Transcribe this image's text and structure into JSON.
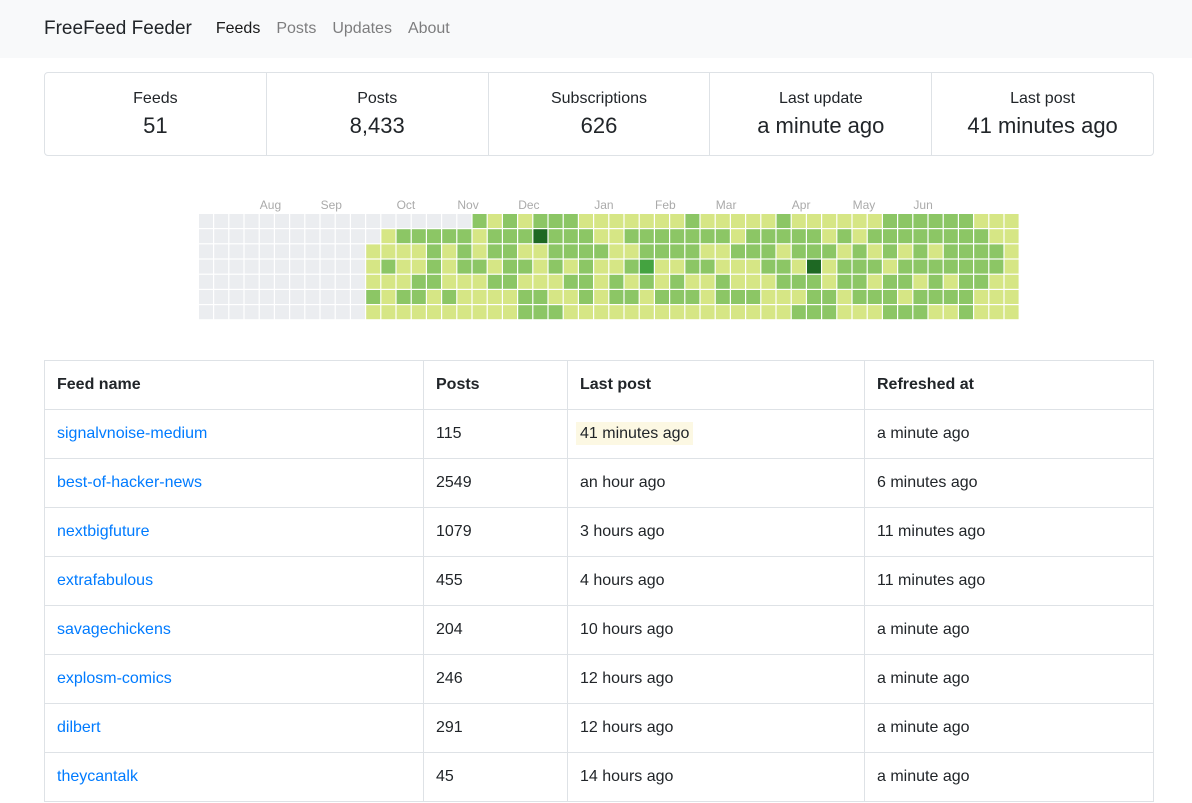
{
  "navbar": {
    "brand": "FreeFeed Feeder",
    "links": [
      {
        "label": "Feeds",
        "active": true
      },
      {
        "label": "Posts",
        "active": false
      },
      {
        "label": "Updates",
        "active": false
      },
      {
        "label": "About",
        "active": false
      }
    ]
  },
  "stats": [
    {
      "label": "Feeds",
      "value": "51"
    },
    {
      "label": "Posts",
      "value": "8,433"
    },
    {
      "label": "Subscriptions",
      "value": "626"
    },
    {
      "label": "Last update",
      "value": "a minute ago"
    },
    {
      "label": "Last post",
      "value": "41 minutes ago"
    }
  ],
  "heatmap": {
    "month_labels": [
      "Aug",
      "Sep",
      "Oct",
      "Nov",
      "Dec",
      "Jan",
      "Feb",
      "Mar",
      "Apr",
      "May",
      "Jun"
    ],
    "colors": [
      "#ebedf0",
      "#d6e685",
      "#8cc665",
      "#44a340",
      "#1e6823"
    ],
    "weeks": [
      [
        0,
        0,
        0,
        0,
        0,
        0,
        0
      ],
      [
        0,
        0,
        0,
        0,
        0,
        0,
        0
      ],
      [
        0,
        0,
        0,
        0,
        0,
        0,
        0
      ],
      [
        0,
        0,
        0,
        0,
        0,
        0,
        0
      ],
      [
        0,
        0,
        0,
        0,
        0,
        0,
        0
      ],
      [
        0,
        0,
        0,
        0,
        0,
        0,
        0
      ],
      [
        0,
        0,
        0,
        0,
        0,
        0,
        0
      ],
      [
        0,
        0,
        0,
        0,
        0,
        0,
        0
      ],
      [
        0,
        0,
        0,
        0,
        0,
        0,
        0
      ],
      [
        0,
        0,
        0,
        0,
        0,
        0,
        0
      ],
      [
        0,
        0,
        0,
        0,
        0,
        0,
        0
      ],
      [
        0,
        0,
        1,
        1,
        1,
        2,
        1
      ],
      [
        0,
        1,
        1,
        2,
        1,
        1,
        1
      ],
      [
        0,
        2,
        1,
        1,
        1,
        2,
        1
      ],
      [
        0,
        2,
        1,
        1,
        2,
        2,
        1
      ],
      [
        0,
        2,
        2,
        2,
        2,
        1,
        1
      ],
      [
        0,
        2,
        1,
        1,
        1,
        2,
        1
      ],
      [
        0,
        2,
        2,
        2,
        1,
        1,
        1
      ],
      [
        2,
        1,
        1,
        2,
        1,
        1,
        1
      ],
      [
        1,
        2,
        2,
        1,
        2,
        1,
        1
      ],
      [
        2,
        2,
        2,
        2,
        2,
        1,
        1
      ],
      [
        1,
        2,
        1,
        2,
        1,
        2,
        2
      ],
      [
        2,
        4,
        1,
        1,
        1,
        2,
        2
      ],
      [
        2,
        2,
        2,
        2,
        1,
        1,
        2
      ],
      [
        2,
        2,
        2,
        1,
        2,
        1,
        1
      ],
      [
        1,
        2,
        2,
        2,
        2,
        2,
        1
      ],
      [
        1,
        1,
        2,
        1,
        1,
        1,
        1
      ],
      [
        1,
        1,
        1,
        1,
        2,
        2,
        1
      ],
      [
        1,
        2,
        1,
        2,
        1,
        2,
        1
      ],
      [
        1,
        2,
        2,
        3,
        2,
        1,
        1
      ],
      [
        1,
        2,
        2,
        1,
        1,
        2,
        1
      ],
      [
        1,
        2,
        2,
        1,
        2,
        2,
        1
      ],
      [
        2,
        2,
        2,
        2,
        1,
        2,
        1
      ],
      [
        1,
        2,
        1,
        2,
        1,
        1,
        1
      ],
      [
        1,
        2,
        1,
        1,
        2,
        2,
        1
      ],
      [
        1,
        1,
        2,
        1,
        1,
        2,
        1
      ],
      [
        1,
        2,
        2,
        1,
        1,
        2,
        1
      ],
      [
        1,
        2,
        2,
        2,
        1,
        1,
        1
      ],
      [
        2,
        2,
        1,
        2,
        2,
        1,
        1
      ],
      [
        1,
        2,
        2,
        1,
        2,
        1,
        2
      ],
      [
        1,
        2,
        2,
        4,
        2,
        2,
        2
      ],
      [
        1,
        1,
        2,
        1,
        1,
        2,
        2
      ],
      [
        1,
        2,
        1,
        2,
        2,
        1,
        1
      ],
      [
        1,
        1,
        2,
        2,
        2,
        2,
        1
      ],
      [
        1,
        2,
        1,
        2,
        1,
        2,
        1
      ],
      [
        2,
        2,
        2,
        1,
        2,
        2,
        2
      ],
      [
        2,
        2,
        1,
        2,
        2,
        1,
        2
      ],
      [
        2,
        2,
        2,
        2,
        1,
        2,
        2
      ],
      [
        2,
        2,
        1,
        2,
        2,
        2,
        1
      ],
      [
        2,
        2,
        2,
        2,
        1,
        2,
        1
      ],
      [
        2,
        2,
        2,
        2,
        2,
        2,
        2
      ],
      [
        1,
        2,
        2,
        2,
        2,
        1,
        1
      ],
      [
        1,
        1,
        2,
        2,
        1,
        1,
        1
      ],
      [
        1,
        1,
        1,
        1,
        1,
        1,
        1
      ]
    ]
  },
  "table": {
    "headers": [
      "Feed name",
      "Posts",
      "Last post",
      "Refreshed at"
    ],
    "rows": [
      {
        "name": "signalvnoise-medium",
        "posts": "115",
        "last_post": "41 minutes ago",
        "refreshed": "a minute ago",
        "highlight": true
      },
      {
        "name": "best-of-hacker-news",
        "posts": "2549",
        "last_post": "an hour ago",
        "refreshed": "6 minutes ago",
        "highlight": false
      },
      {
        "name": "nextbigfuture",
        "posts": "1079",
        "last_post": "3 hours ago",
        "refreshed": "11 minutes ago",
        "highlight": false
      },
      {
        "name": "extrafabulous",
        "posts": "455",
        "last_post": "4 hours ago",
        "refreshed": "11 minutes ago",
        "highlight": false
      },
      {
        "name": "savagechickens",
        "posts": "204",
        "last_post": "10 hours ago",
        "refreshed": "a minute ago",
        "highlight": false
      },
      {
        "name": "explosm-comics",
        "posts": "246",
        "last_post": "12 hours ago",
        "refreshed": "a minute ago",
        "highlight": false
      },
      {
        "name": "dilbert",
        "posts": "291",
        "last_post": "12 hours ago",
        "refreshed": "a minute ago",
        "highlight": false
      },
      {
        "name": "theycantalk",
        "posts": "45",
        "last_post": "14 hours ago",
        "refreshed": "a minute ago",
        "highlight": false
      }
    ]
  }
}
